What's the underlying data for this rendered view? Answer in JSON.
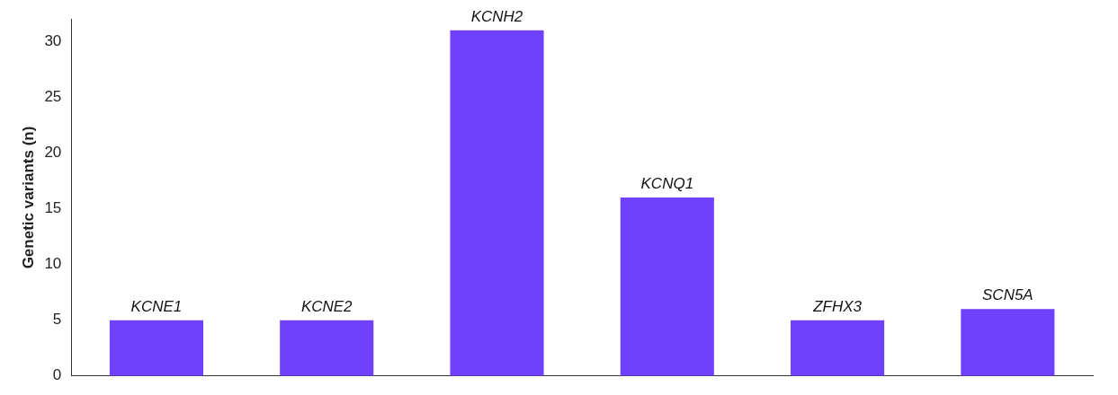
{
  "chart_data": {
    "type": "bar",
    "ylabel": "Genetic variants (n)",
    "categories": [
      "KCNE1",
      "KCNE2",
      "KCNH2",
      "KCNQ1",
      "ZFHX3",
      "SCN5A"
    ],
    "values": [
      5,
      5,
      31,
      16,
      5,
      6
    ],
    "color": "#7040ff",
    "ylim": [
      0,
      32
    ],
    "yticks": [
      0,
      5,
      10,
      15,
      20,
      25,
      30
    ],
    "grid": false,
    "legend": false
  }
}
